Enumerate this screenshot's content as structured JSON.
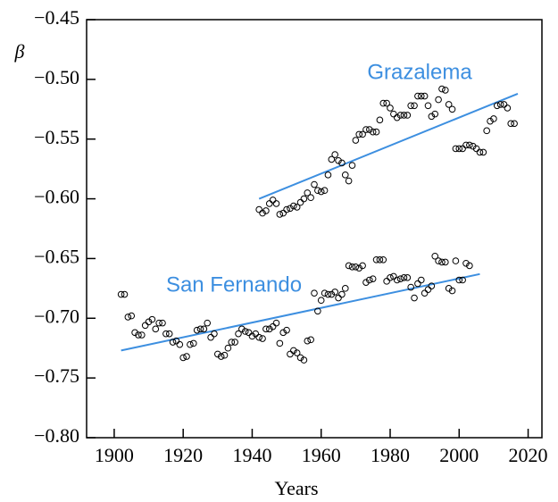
{
  "chart_data": {
    "type": "scatter",
    "ylabel": "β",
    "xlabel": "Years",
    "xlim": [
      1892,
      2024
    ],
    "xticks": [
      1900,
      1920,
      1940,
      1960,
      1980,
      2000,
      2020
    ],
    "ylim": [
      -0.8,
      -0.45
    ],
    "yticks": [
      {
        "value": -0.45,
        "label": "−0.45"
      },
      {
        "value": -0.5,
        "label": "−0.50"
      },
      {
        "value": -0.55,
        "label": "−0.55"
      },
      {
        "value": -0.6,
        "label": "−0.60"
      },
      {
        "value": -0.65,
        "label": "−0.65"
      },
      {
        "value": -0.7,
        "label": "−0.70"
      },
      {
        "value": -0.75,
        "label": "−0.75"
      },
      {
        "value": -0.8,
        "label": "−0.80"
      }
    ],
    "trend_color": "#3d8fe0",
    "series": [
      {
        "name": "Grazalema",
        "color": "#000000",
        "x": [
          1942,
          1943,
          1944,
          1945,
          1946,
          1947,
          1948,
          1949,
          1950,
          1951,
          1952,
          1953,
          1954,
          1955,
          1956,
          1957,
          1958,
          1959,
          1960,
          1961,
          1962,
          1963,
          1964,
          1965,
          1966,
          1967,
          1968,
          1969,
          1970,
          1971,
          1972,
          1973,
          1974,
          1975,
          1976,
          1977,
          1978,
          1979,
          1980,
          1981,
          1982,
          1983,
          1984,
          1985,
          1986,
          1987,
          1988,
          1989,
          1990,
          1991,
          1992,
          1993,
          1994,
          1995,
          1996,
          1997,
          1998,
          1999,
          2000,
          2001,
          2002,
          2003,
          2004,
          2005,
          2006,
          2007,
          2008,
          2009,
          2010,
          2011,
          2012,
          2013,
          2014,
          2015,
          2016
        ],
        "values": [
          -0.609,
          -0.612,
          -0.61,
          -0.604,
          -0.601,
          -0.604,
          -0.613,
          -0.612,
          -0.609,
          -0.608,
          -0.606,
          -0.607,
          -0.603,
          -0.6,
          -0.595,
          -0.599,
          -0.588,
          -0.593,
          -0.594,
          -0.593,
          -0.58,
          -0.567,
          -0.563,
          -0.568,
          -0.57,
          -0.58,
          -0.585,
          -0.572,
          -0.551,
          -0.546,
          -0.546,
          -0.542,
          -0.542,
          -0.544,
          -0.544,
          -0.534,
          -0.52,
          -0.52,
          -0.524,
          -0.529,
          -0.532,
          -0.53,
          -0.53,
          -0.53,
          -0.522,
          -0.522,
          -0.514,
          -0.514,
          -0.514,
          -0.522,
          -0.531,
          -0.529,
          -0.517,
          -0.508,
          -0.509,
          -0.521,
          -0.525,
          -0.558,
          -0.558,
          -0.558,
          -0.555,
          -0.555,
          -0.556,
          -0.558,
          -0.561,
          -0.561,
          -0.543,
          -0.535,
          -0.533,
          -0.522,
          -0.521,
          -0.521,
          -0.524,
          -0.537,
          -0.537
        ],
        "trend": {
          "x": [
            1942,
            2017
          ],
          "values": [
            -0.6,
            -0.512
          ]
        }
      },
      {
        "name": "San Fernando",
        "color": "#000000",
        "x": [
          1902,
          1903,
          1904,
          1905,
          1906,
          1907,
          1908,
          1909,
          1910,
          1911,
          1912,
          1913,
          1914,
          1915,
          1916,
          1917,
          1918,
          1919,
          1920,
          1921,
          1922,
          1923,
          1924,
          1925,
          1926,
          1927,
          1928,
          1929,
          1930,
          1931,
          1932,
          1933,
          1934,
          1935,
          1936,
          1937,
          1938,
          1939,
          1940,
          1941,
          1942,
          1943,
          1944,
          1945,
          1946,
          1947,
          1948,
          1949,
          1950,
          1951,
          1952,
          1953,
          1954,
          1955,
          1956,
          1957,
          1958,
          1959,
          1960,
          1961,
          1962,
          1963,
          1964,
          1965,
          1966,
          1967,
          1968,
          1969,
          1970,
          1971,
          1972,
          1973,
          1974,
          1975,
          1976,
          1977,
          1978,
          1979,
          1980,
          1981,
          1982,
          1983,
          1984,
          1985,
          1986,
          1987,
          1988,
          1989,
          1990,
          1991,
          1992,
          1993,
          1994,
          1995,
          1996,
          1997,
          1998,
          1999,
          2000,
          2001,
          2002,
          2003
        ],
        "values": [
          -0.68,
          -0.68,
          -0.699,
          -0.698,
          -0.712,
          -0.714,
          -0.714,
          -0.706,
          -0.703,
          -0.701,
          -0.709,
          -0.704,
          -0.704,
          -0.713,
          -0.713,
          -0.72,
          -0.719,
          -0.722,
          -0.733,
          -0.732,
          -0.722,
          -0.721,
          -0.71,
          -0.709,
          -0.709,
          -0.704,
          -0.716,
          -0.713,
          -0.73,
          -0.732,
          -0.731,
          -0.725,
          -0.72,
          -0.72,
          -0.713,
          -0.709,
          -0.711,
          -0.712,
          -0.715,
          -0.713,
          -0.716,
          -0.717,
          -0.709,
          -0.709,
          -0.707,
          -0.704,
          -0.721,
          -0.712,
          -0.71,
          -0.73,
          -0.727,
          -0.729,
          -0.733,
          -0.735,
          -0.719,
          -0.718,
          -0.679,
          -0.694,
          -0.685,
          -0.679,
          -0.68,
          -0.68,
          -0.678,
          -0.683,
          -0.68,
          -0.675,
          -0.656,
          -0.657,
          -0.657,
          -0.658,
          -0.656,
          -0.67,
          -0.668,
          -0.667,
          -0.651,
          -0.651,
          -0.651,
          -0.669,
          -0.666,
          -0.665,
          -0.668,
          -0.667,
          -0.666,
          -0.666,
          -0.674,
          -0.683,
          -0.671,
          -0.668,
          -0.679,
          -0.676,
          -0.673,
          -0.648,
          -0.652,
          -0.653,
          -0.653,
          -0.675,
          -0.677,
          -0.652,
          -0.668,
          -0.668,
          -0.654,
          -0.656
        ],
        "trend": {
          "x": [
            1902,
            2006
          ],
          "values": [
            -0.727,
            -0.663
          ]
        }
      }
    ]
  }
}
